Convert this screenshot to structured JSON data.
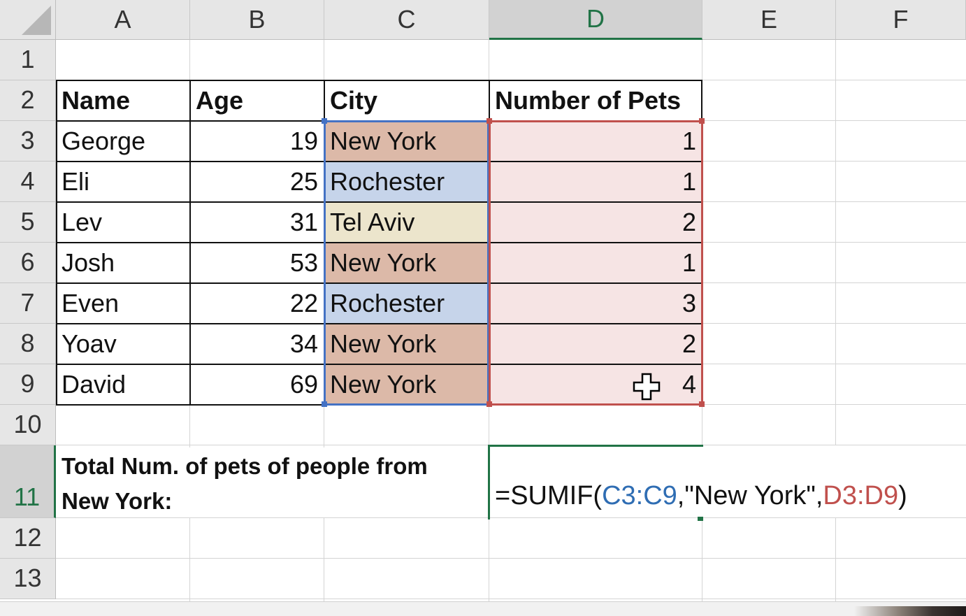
{
  "columns": [
    "A",
    "B",
    "C",
    "D",
    "E",
    "F"
  ],
  "rows": [
    "1",
    "2",
    "3",
    "4",
    "5",
    "6",
    "7",
    "8",
    "9",
    "10",
    "11",
    "12",
    "13"
  ],
  "headers": {
    "name": "Name",
    "age": "Age",
    "city": "City",
    "pets": "Number of Pets"
  },
  "records": [
    {
      "name": "George",
      "age": "19",
      "city": "New York",
      "pets": "1"
    },
    {
      "name": "Eli",
      "age": "25",
      "city": "Rochester",
      "pets": "1"
    },
    {
      "name": "Lev",
      "age": "31",
      "city": "Tel Aviv",
      "pets": "2"
    },
    {
      "name": "Josh",
      "age": "53",
      "city": "New York",
      "pets": "1"
    },
    {
      "name": "Even",
      "age": "22",
      "city": "Rochester",
      "pets": "3"
    },
    {
      "name": "Yoav",
      "age": "34",
      "city": "New York",
      "pets": "2"
    },
    {
      "name": "David",
      "age": "69",
      "city": "New York",
      "pets": "4"
    }
  ],
  "total_label": {
    "line1": "Total Num. of pets of people from",
    "line2": "New York:"
  },
  "formula": {
    "prefix": "=SUMIF(",
    "range1": "C3:C9",
    "mid": ",\"New York\",",
    "range2": "D3:D9",
    "suffix": ")"
  },
  "active_cell": "D11",
  "colors": {
    "new_york_fill": "#dcb9a8",
    "rochester_fill": "#c6d4ea",
    "tel_aviv_fill": "#ece5cc",
    "pets_fill": "#f6e4e4",
    "range1_color": "#4472c4",
    "range2_color": "#c0504d",
    "selection_color": "#217346"
  }
}
